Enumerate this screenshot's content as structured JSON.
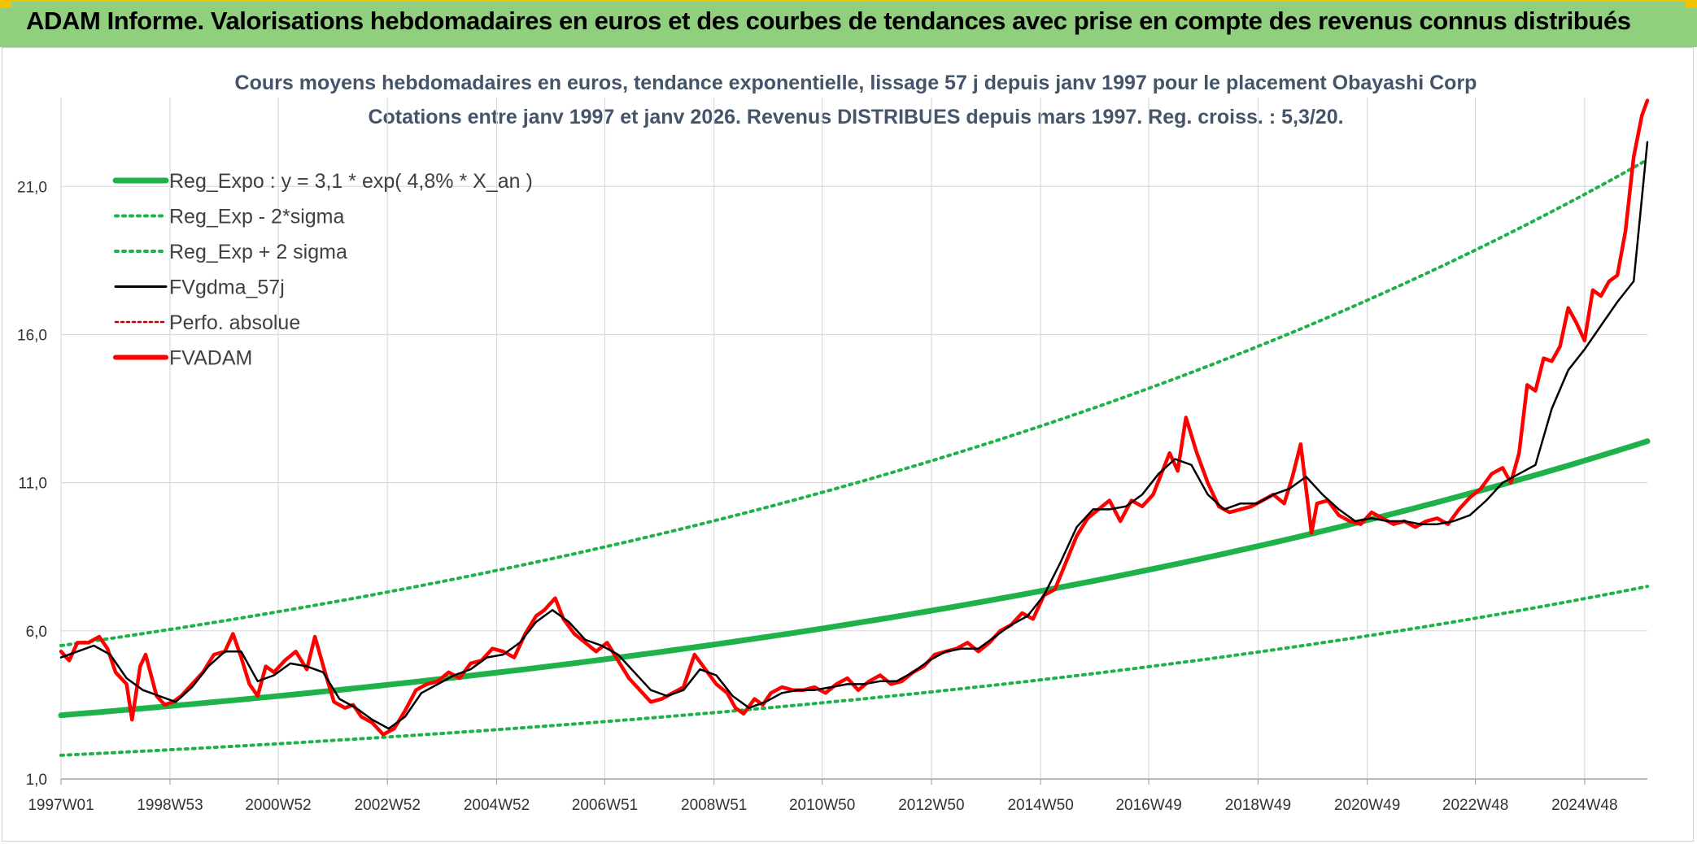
{
  "header": {
    "title": "ADAM Informe. Valorisations hebdomadaires en euros et des courbes de tendances avec prise en compte des revenus connus distribués"
  },
  "colors": {
    "header_bg": "#8fcf7e",
    "regression": "#1fb24a",
    "sigma_band": "#1fb24a",
    "moving_average": "#000000",
    "perf_absolue": "#c00000",
    "fvadam": "#ff0000"
  },
  "chart_data": {
    "type": "line",
    "title_line1": "Cours moyens hebdomadaires en euros, tendance exponentielle, lissage 57 j depuis janv 1997 pour le placement Obayashi Corp",
    "title_line2": "Cotations entre janv 1997 et janv 2026. Revenus DISTRIBUES depuis mars 1997. Reg. croiss. : 5,3/20.",
    "x_ticks": [
      "1997W01",
      "1998W53",
      "2000W52",
      "2002W52",
      "2004W52",
      "2006W51",
      "2008W51",
      "2010W50",
      "2012W50",
      "2014W50",
      "2016W49",
      "2018W49",
      "2020W49",
      "2022W48",
      "2024W48"
    ],
    "y_ticks": [
      "1,0",
      "6,0",
      "11,0",
      "16,0",
      "21,0"
    ],
    "ylim": [
      1,
      24
    ],
    "xlim": [
      1997.0,
      2026.05
    ],
    "grid": true,
    "legend_position": "top-left",
    "legend": [
      {
        "label": "Reg_Expo : y = 3,1 * exp( 4,8% *  X_an )",
        "style": "thick-solid-green"
      },
      {
        "label": "Reg_Exp - 2*sigma",
        "style": "dotted-green"
      },
      {
        "label": "Reg_Exp + 2 sigma",
        "style": "dotted-green"
      },
      {
        "label": "FVgdma_57j",
        "style": "solid-black"
      },
      {
        "label": "Perfo. absolue",
        "style": "dotted-darkred"
      },
      {
        "label": "FVADAM",
        "style": "thick-solid-red"
      }
    ],
    "series": [
      {
        "name": "Reg_Expo : y = 3,1 * exp( 4,8% *  X_an )",
        "kind": "exp",
        "x": [
          1997.0,
          2026.05
        ],
        "y": [
          3.15,
          12.4
        ]
      },
      {
        "name": "Reg_Exp - 2*sigma",
        "kind": "exp",
        "x": [
          1997.0,
          2026.05
        ],
        "y": [
          1.8,
          7.5
        ]
      },
      {
        "name": "Reg_Exp + 2 sigma",
        "kind": "exp",
        "x": [
          1997.0,
          2026.05
        ],
        "y": [
          5.5,
          21.9
        ]
      },
      {
        "name": "FVADAM",
        "kind": "line",
        "x": [
          1997.0,
          1997.15,
          1997.3,
          1997.5,
          1997.7,
          1997.85,
          1998.0,
          1998.2,
          1998.3,
          1998.45,
          1998.55,
          1998.75,
          1998.9,
          1999.05,
          1999.2,
          1999.4,
          1999.6,
          1999.8,
          2000.0,
          2000.15,
          2000.3,
          2000.45,
          2000.6,
          2000.75,
          2000.9,
          2001.1,
          2001.3,
          2001.5,
          2001.65,
          2001.85,
          2002.0,
          2002.2,
          2002.35,
          2002.5,
          2002.7,
          2002.9,
          2003.1,
          2003.3,
          2003.5,
          2003.7,
          2003.9,
          2004.1,
          2004.3,
          2004.5,
          2004.7,
          2004.9,
          2005.1,
          2005.3,
          2005.5,
          2005.7,
          2005.85,
          2006.05,
          2006.2,
          2006.4,
          2006.6,
          2006.8,
          2007.0,
          2007.2,
          2007.4,
          2007.6,
          2007.8,
          2008.0,
          2008.2,
          2008.4,
          2008.6,
          2008.8,
          2009.0,
          2009.2,
          2009.35,
          2009.5,
          2009.7,
          2009.85,
          2010.0,
          2010.2,
          2010.4,
          2010.6,
          2010.8,
          2011.0,
          2011.2,
          2011.4,
          2011.6,
          2011.8,
          2012.0,
          2012.2,
          2012.4,
          2012.6,
          2012.8,
          2013.0,
          2013.2,
          2013.4,
          2013.6,
          2013.8,
          2014.0,
          2014.2,
          2014.4,
          2014.6,
          2014.8,
          2015.0,
          2015.2,
          2015.4,
          2015.6,
          2015.8,
          2016.0,
          2016.2,
          2016.4,
          2016.6,
          2016.8,
          2017.0,
          2017.15,
          2017.3,
          2017.45,
          2017.6,
          2017.8,
          2018.0,
          2018.2,
          2018.4,
          2018.6,
          2018.8,
          2019.0,
          2019.2,
          2019.4,
          2019.55,
          2019.7,
          2019.8,
          2019.9,
          2020.0,
          2020.2,
          2020.4,
          2020.6,
          2020.8,
          2021.0,
          2021.2,
          2021.4,
          2021.6,
          2021.8,
          2022.0,
          2022.2,
          2022.4,
          2022.6,
          2022.8,
          2023.0,
          2023.2,
          2023.4,
          2023.55,
          2023.7,
          2023.85,
          2024.0,
          2024.15,
          2024.3,
          2024.45,
          2024.6,
          2024.75,
          2024.9,
          2025.05,
          2025.2,
          2025.35,
          2025.5,
          2025.65,
          2025.8,
          2025.95,
          2026.05
        ],
        "y": [
          5.3,
          5.0,
          5.6,
          5.6,
          5.8,
          5.4,
          4.6,
          4.2,
          3.0,
          4.8,
          5.2,
          3.8,
          3.5,
          3.6,
          3.8,
          4.2,
          4.6,
          5.2,
          5.3,
          5.9,
          5.1,
          4.2,
          3.8,
          4.8,
          4.6,
          5.0,
          5.3,
          4.7,
          5.8,
          4.5,
          3.6,
          3.4,
          3.5,
          3.1,
          2.9,
          2.5,
          2.7,
          3.3,
          4.0,
          4.2,
          4.3,
          4.6,
          4.4,
          4.9,
          5.0,
          5.4,
          5.3,
          5.1,
          5.9,
          6.5,
          6.7,
          7.1,
          6.4,
          5.9,
          5.6,
          5.3,
          5.6,
          5.0,
          4.4,
          4.0,
          3.6,
          3.7,
          3.9,
          4.1,
          5.2,
          4.7,
          4.2,
          3.9,
          3.4,
          3.2,
          3.7,
          3.5,
          3.9,
          4.1,
          4.0,
          4.0,
          4.1,
          3.9,
          4.2,
          4.4,
          4.0,
          4.3,
          4.5,
          4.2,
          4.3,
          4.6,
          4.8,
          5.2,
          5.3,
          5.4,
          5.6,
          5.3,
          5.6,
          6.0,
          6.2,
          6.6,
          6.4,
          7.2,
          7.4,
          8.3,
          9.2,
          9.8,
          10.1,
          10.4,
          9.7,
          10.4,
          10.2,
          10.6,
          11.3,
          12.0,
          11.4,
          13.2,
          12.0,
          11.0,
          10.2,
          10.0,
          10.1,
          10.2,
          10.4,
          10.6,
          10.3,
          11.2,
          12.3,
          10.8,
          9.3,
          10.3,
          10.4,
          9.9,
          9.7,
          9.6,
          10.0,
          9.8,
          9.6,
          9.7,
          9.5,
          9.7,
          9.8,
          9.6,
          10.1,
          10.5,
          10.8,
          11.3,
          11.5,
          11.0,
          12.0,
          14.3,
          14.1,
          15.2,
          15.1,
          15.6,
          16.9,
          16.4,
          15.8,
          17.5,
          17.3,
          17.8,
          18.0,
          19.5,
          22.0,
          23.4,
          23.9
        ]
      },
      {
        "name": "FVgdma_57j",
        "kind": "line",
        "x": [
          1997.0,
          1997.3,
          1997.6,
          1997.9,
          1998.2,
          1998.5,
          1998.8,
          1999.1,
          1999.4,
          1999.7,
          2000.0,
          2000.3,
          2000.6,
          2000.9,
          2001.2,
          2001.5,
          2001.8,
          2002.1,
          2002.4,
          2002.7,
          2003.0,
          2003.3,
          2003.6,
          2003.9,
          2004.2,
          2004.5,
          2004.8,
          2005.1,
          2005.4,
          2005.7,
          2006.0,
          2006.3,
          2006.6,
          2006.9,
          2007.2,
          2007.5,
          2007.8,
          2008.1,
          2008.4,
          2008.7,
          2009.0,
          2009.3,
          2009.6,
          2009.9,
          2010.2,
          2010.5,
          2010.8,
          2011.1,
          2011.4,
          2011.7,
          2012.0,
          2012.3,
          2012.6,
          2012.9,
          2013.2,
          2013.5,
          2013.8,
          2014.1,
          2014.4,
          2014.7,
          2015.0,
          2015.3,
          2015.6,
          2015.9,
          2016.2,
          2016.5,
          2016.8,
          2017.1,
          2017.4,
          2017.7,
          2018.0,
          2018.3,
          2018.6,
          2018.9,
          2019.2,
          2019.5,
          2019.8,
          2020.1,
          2020.4,
          2020.7,
          2021.0,
          2021.3,
          2021.6,
          2021.9,
          2022.2,
          2022.5,
          2022.8,
          2023.1,
          2023.4,
          2023.7,
          2024.0,
          2024.3,
          2024.6,
          2024.9,
          2025.2,
          2025.5,
          2025.8,
          2026.05
        ],
        "y": [
          5.1,
          5.3,
          5.5,
          5.2,
          4.4,
          4.0,
          3.8,
          3.6,
          4.1,
          4.8,
          5.3,
          5.3,
          4.3,
          4.5,
          4.9,
          4.8,
          4.6,
          3.7,
          3.4,
          3.0,
          2.7,
          3.1,
          3.9,
          4.2,
          4.5,
          4.7,
          5.1,
          5.2,
          5.6,
          6.3,
          6.7,
          6.3,
          5.7,
          5.5,
          5.2,
          4.6,
          4.0,
          3.8,
          4.0,
          4.7,
          4.5,
          3.8,
          3.4,
          3.6,
          3.9,
          4.0,
          4.0,
          4.1,
          4.2,
          4.2,
          4.3,
          4.3,
          4.6,
          5.0,
          5.3,
          5.4,
          5.4,
          5.8,
          6.2,
          6.5,
          7.2,
          8.3,
          9.5,
          10.1,
          10.1,
          10.2,
          10.6,
          11.3,
          11.8,
          11.6,
          10.6,
          10.1,
          10.3,
          10.3,
          10.6,
          10.8,
          11.2,
          10.6,
          10.1,
          9.7,
          9.8,
          9.7,
          9.7,
          9.6,
          9.6,
          9.7,
          9.9,
          10.4,
          11.0,
          11.3,
          11.6,
          13.5,
          14.8,
          15.5,
          16.3,
          17.1,
          17.8,
          22.5
        ]
      }
    ]
  }
}
